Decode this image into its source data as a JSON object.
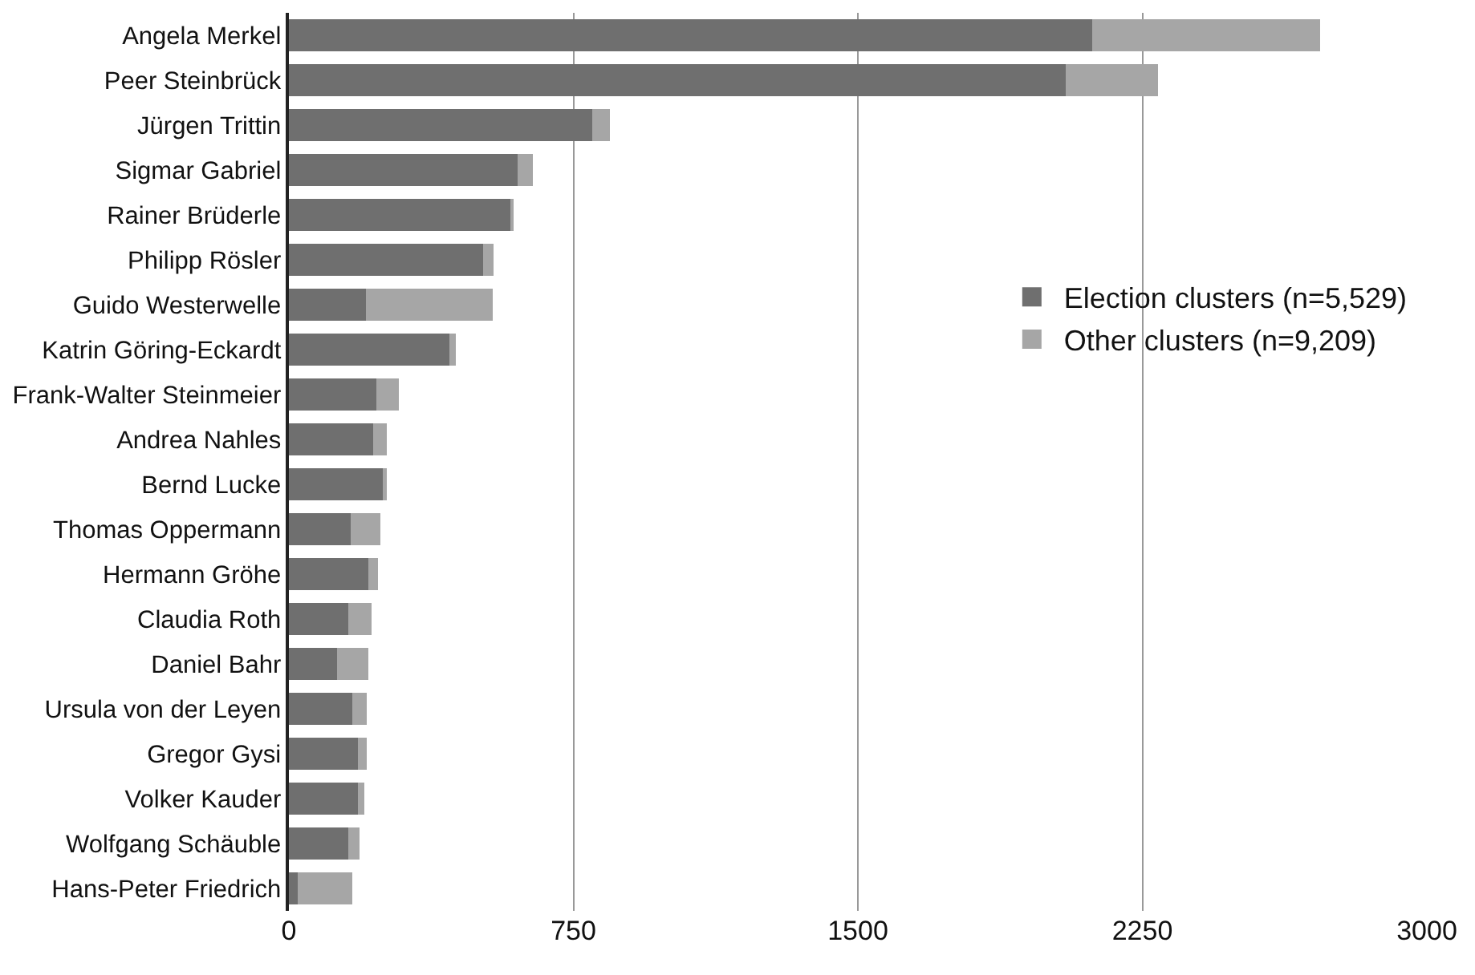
{
  "chart_data": {
    "type": "bar",
    "orientation": "horizontal",
    "stacked": true,
    "categories": [
      "Angela Merkel",
      "Peer Steinbrück",
      "Jürgen Trittin",
      "Sigmar Gabriel",
      "Rainer Brüderle",
      "Philipp Rösler",
      "Guido Westerwelle",
      "Katrin Göring-Eckardt",
      "Frank-Walter Steinmeier",
      "Andrea Nahles",
      "Bernd Lucke",
      "Thomas Oppermann",
      "Hermann Gröhe",
      "Claudia Roth",
      "Daniel Bahr",
      "Ursula von der Leyen",
      "Gregor Gysi",
      "Volker Kauder",
      "Wolfgang Schäuble",
      "Hans-Peter Friedrich"
    ],
    "series": [
      {
        "name": "Election clusters (n=5,529)",
        "color": "#6f6f6f",
        "values": [
          2117,
          2047,
          800,
          603,
          587,
          513,
          203,
          423,
          230,
          223,
          247,
          163,
          210,
          157,
          126,
          167,
          181,
          181,
          157,
          23
        ]
      },
      {
        "name": "Other clusters (n=9,209)",
        "color": "#a6a6a6",
        "values": [
          601,
          244,
          46,
          41,
          5,
          26,
          335,
          18,
          60,
          36,
          12,
          78,
          25,
          61,
          84,
          39,
          25,
          18,
          30,
          144
        ]
      }
    ],
    "xlim": [
      0,
      3000
    ],
    "xticks": [
      0,
      750,
      1500,
      2250,
      3000
    ],
    "grid": "x",
    "legend": "right"
  }
}
